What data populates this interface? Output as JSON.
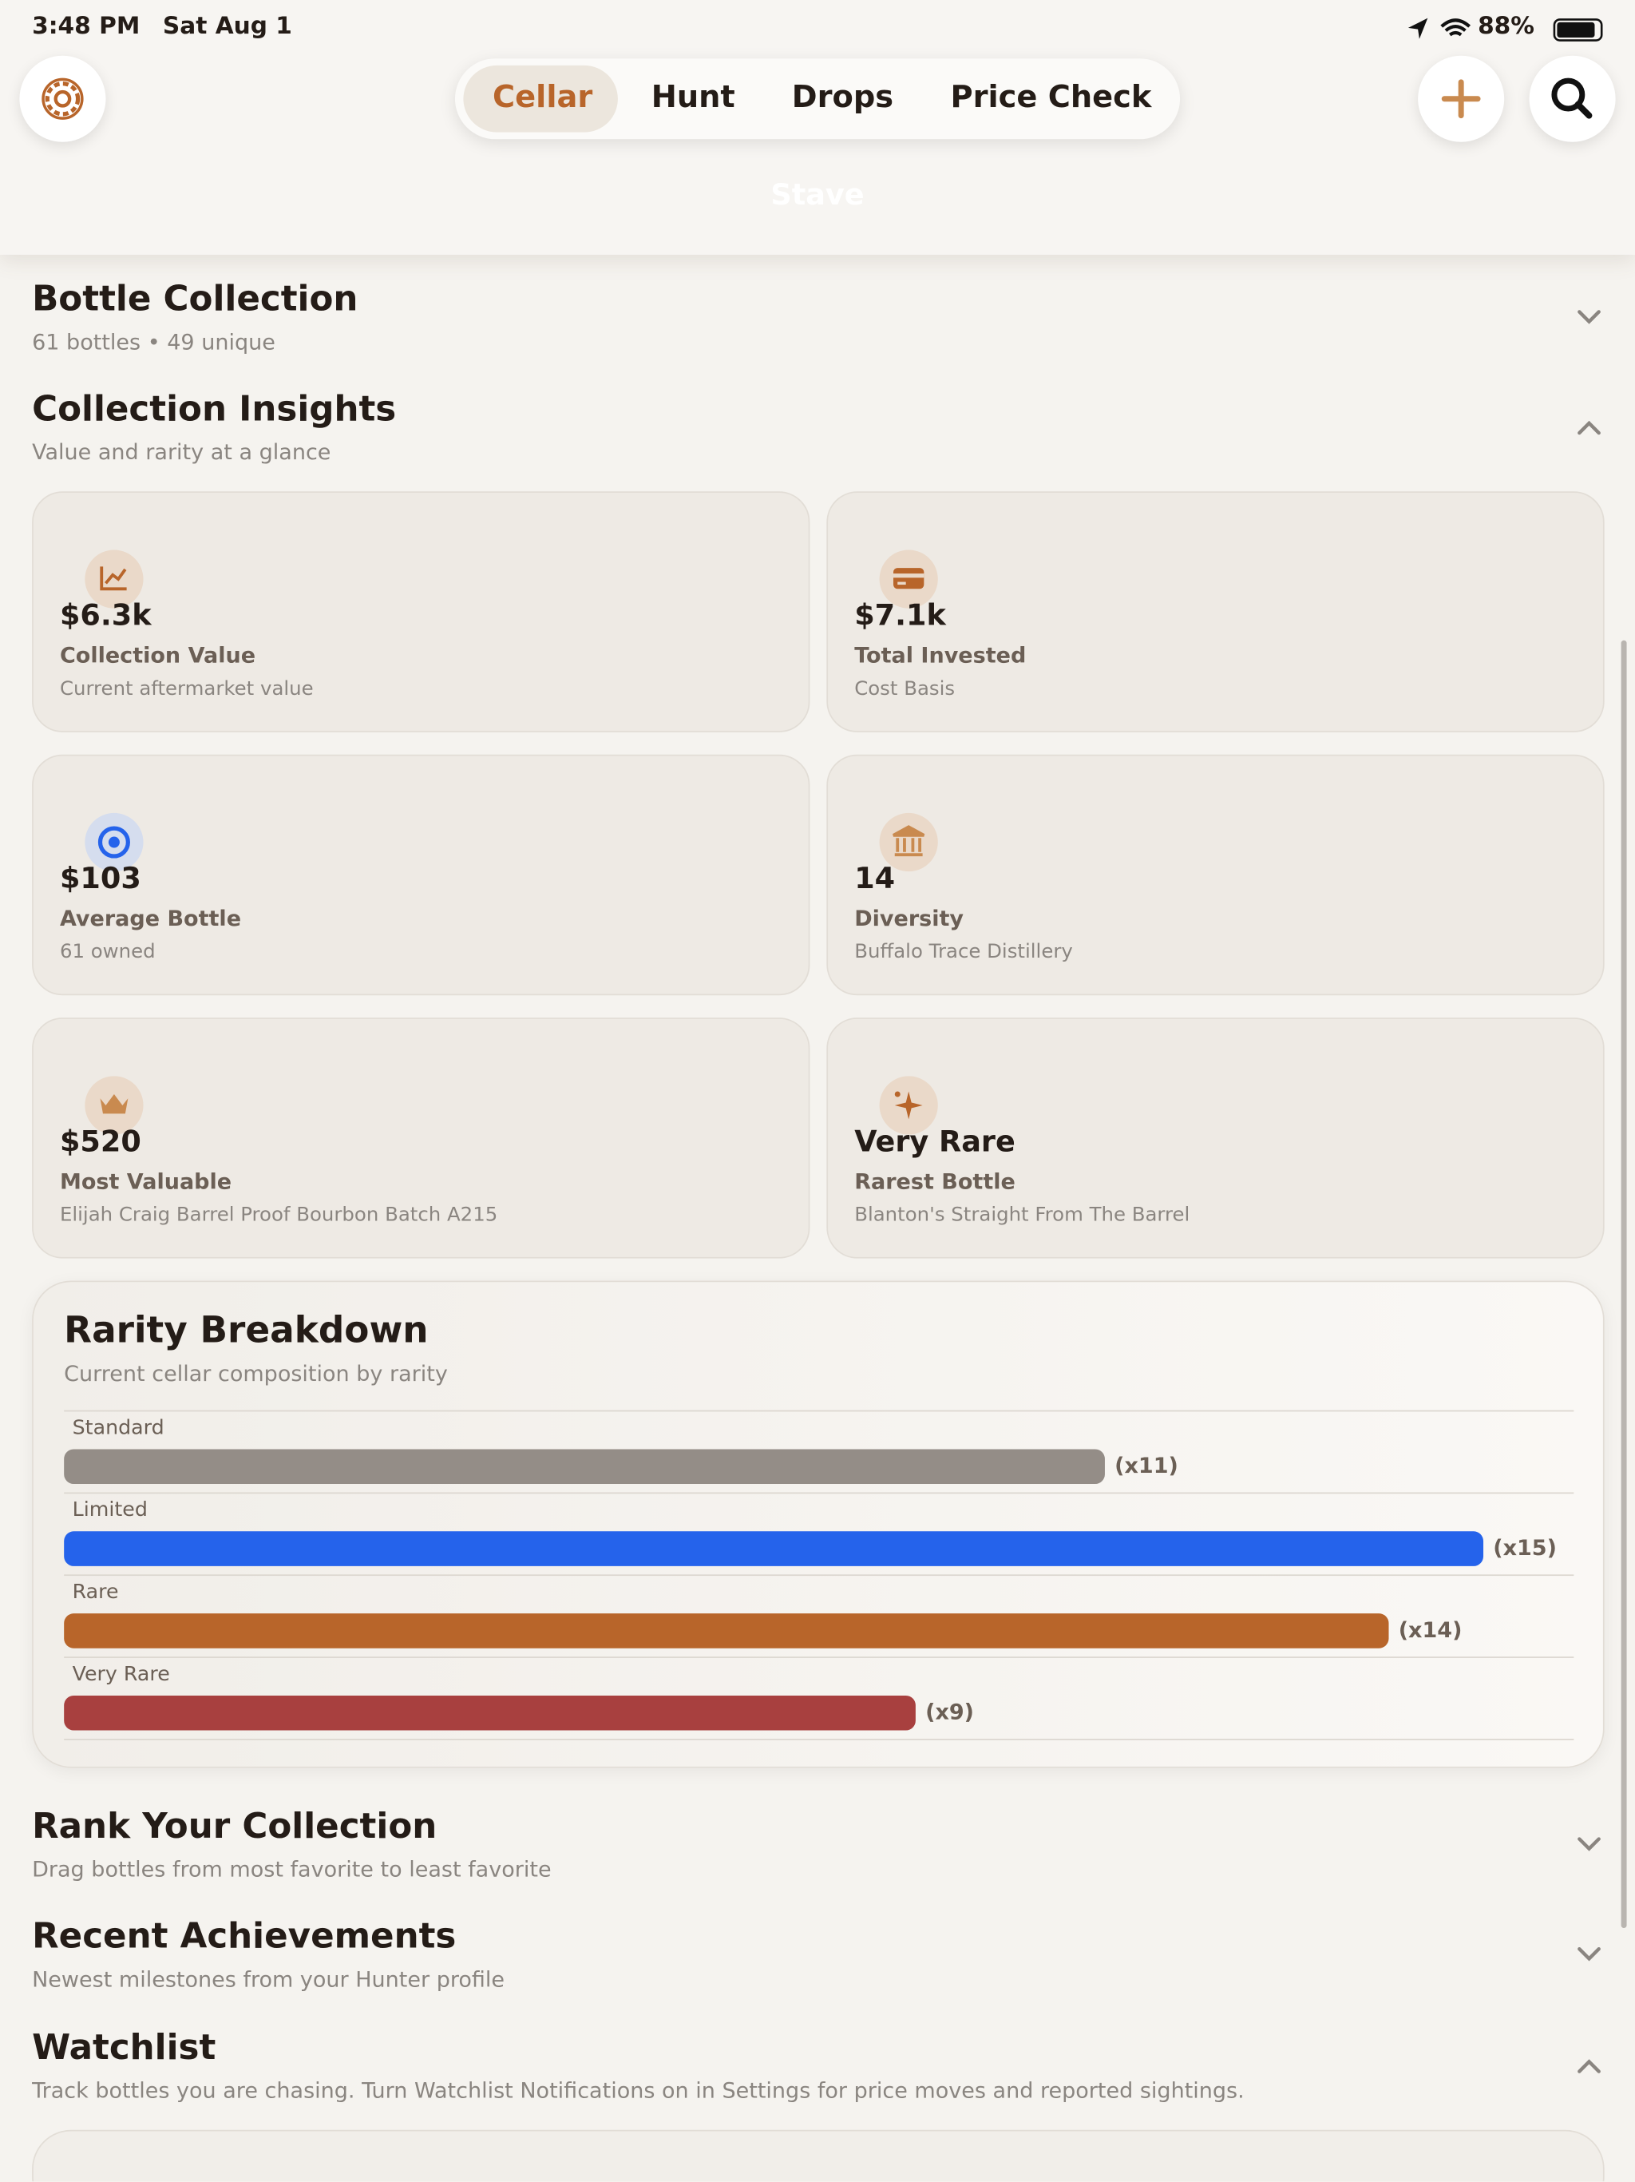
{
  "status_bar": {
    "time": "3:48 PM",
    "date": "Sat Aug 1",
    "battery": "88%"
  },
  "nav": {
    "tabs": [
      "Cellar",
      "Hunt",
      "Drops",
      "Price Check"
    ],
    "title": "Stave"
  },
  "sections": [
    {
      "title": "Bottle Collection",
      "subtitle": "61 bottles • 49 unique"
    },
    {
      "title": "Collection Insights",
      "subtitle": "Value and rarity at a glance"
    },
    {
      "title": "Rank Your Collection",
      "subtitle": "Drag bottles from most favorite to least favorite"
    },
    {
      "title": "Recent Achievements",
      "subtitle": "Newest milestones from your Hunter profile"
    },
    {
      "title": "Watchlist",
      "subtitle": "Track bottles you are chasing. Turn Watchlist Notifications on in Settings for price moves and reported sightings."
    }
  ],
  "insights": [
    {
      "value": "$6.3k",
      "label": "Collection Value",
      "detail": "Current aftermarket value"
    },
    {
      "value": "$7.1k",
      "label": "Total Invested",
      "detail": "Cost Basis"
    },
    {
      "value": "$103",
      "label": "Average Bottle",
      "detail": "61 owned"
    },
    {
      "value": "14",
      "label": "Diversity",
      "detail": "Buffalo Trace Distillery"
    },
    {
      "value": "$520",
      "label": "Most Valuable",
      "detail": "Elijah Craig Barrel Proof Bourbon Batch A215"
    },
    {
      "value": "Very Rare",
      "label": "Rarest Bottle",
      "detail": "Blanton's Straight From The Barrel"
    }
  ],
  "chart_data": {
    "type": "bar",
    "title": "Rarity Breakdown",
    "subtitle": "Current cellar composition by rarity",
    "categories": [
      "Standard",
      "Limited",
      "Rare",
      "Very Rare"
    ],
    "values": [
      11,
      15,
      14,
      9
    ],
    "value_labels": [
      "(x11)",
      "(x15)",
      "(x14)",
      "(x9)"
    ],
    "colors": [
      "#948d87",
      "#2563eb",
      "#b8652a",
      "#a8403f"
    ]
  }
}
